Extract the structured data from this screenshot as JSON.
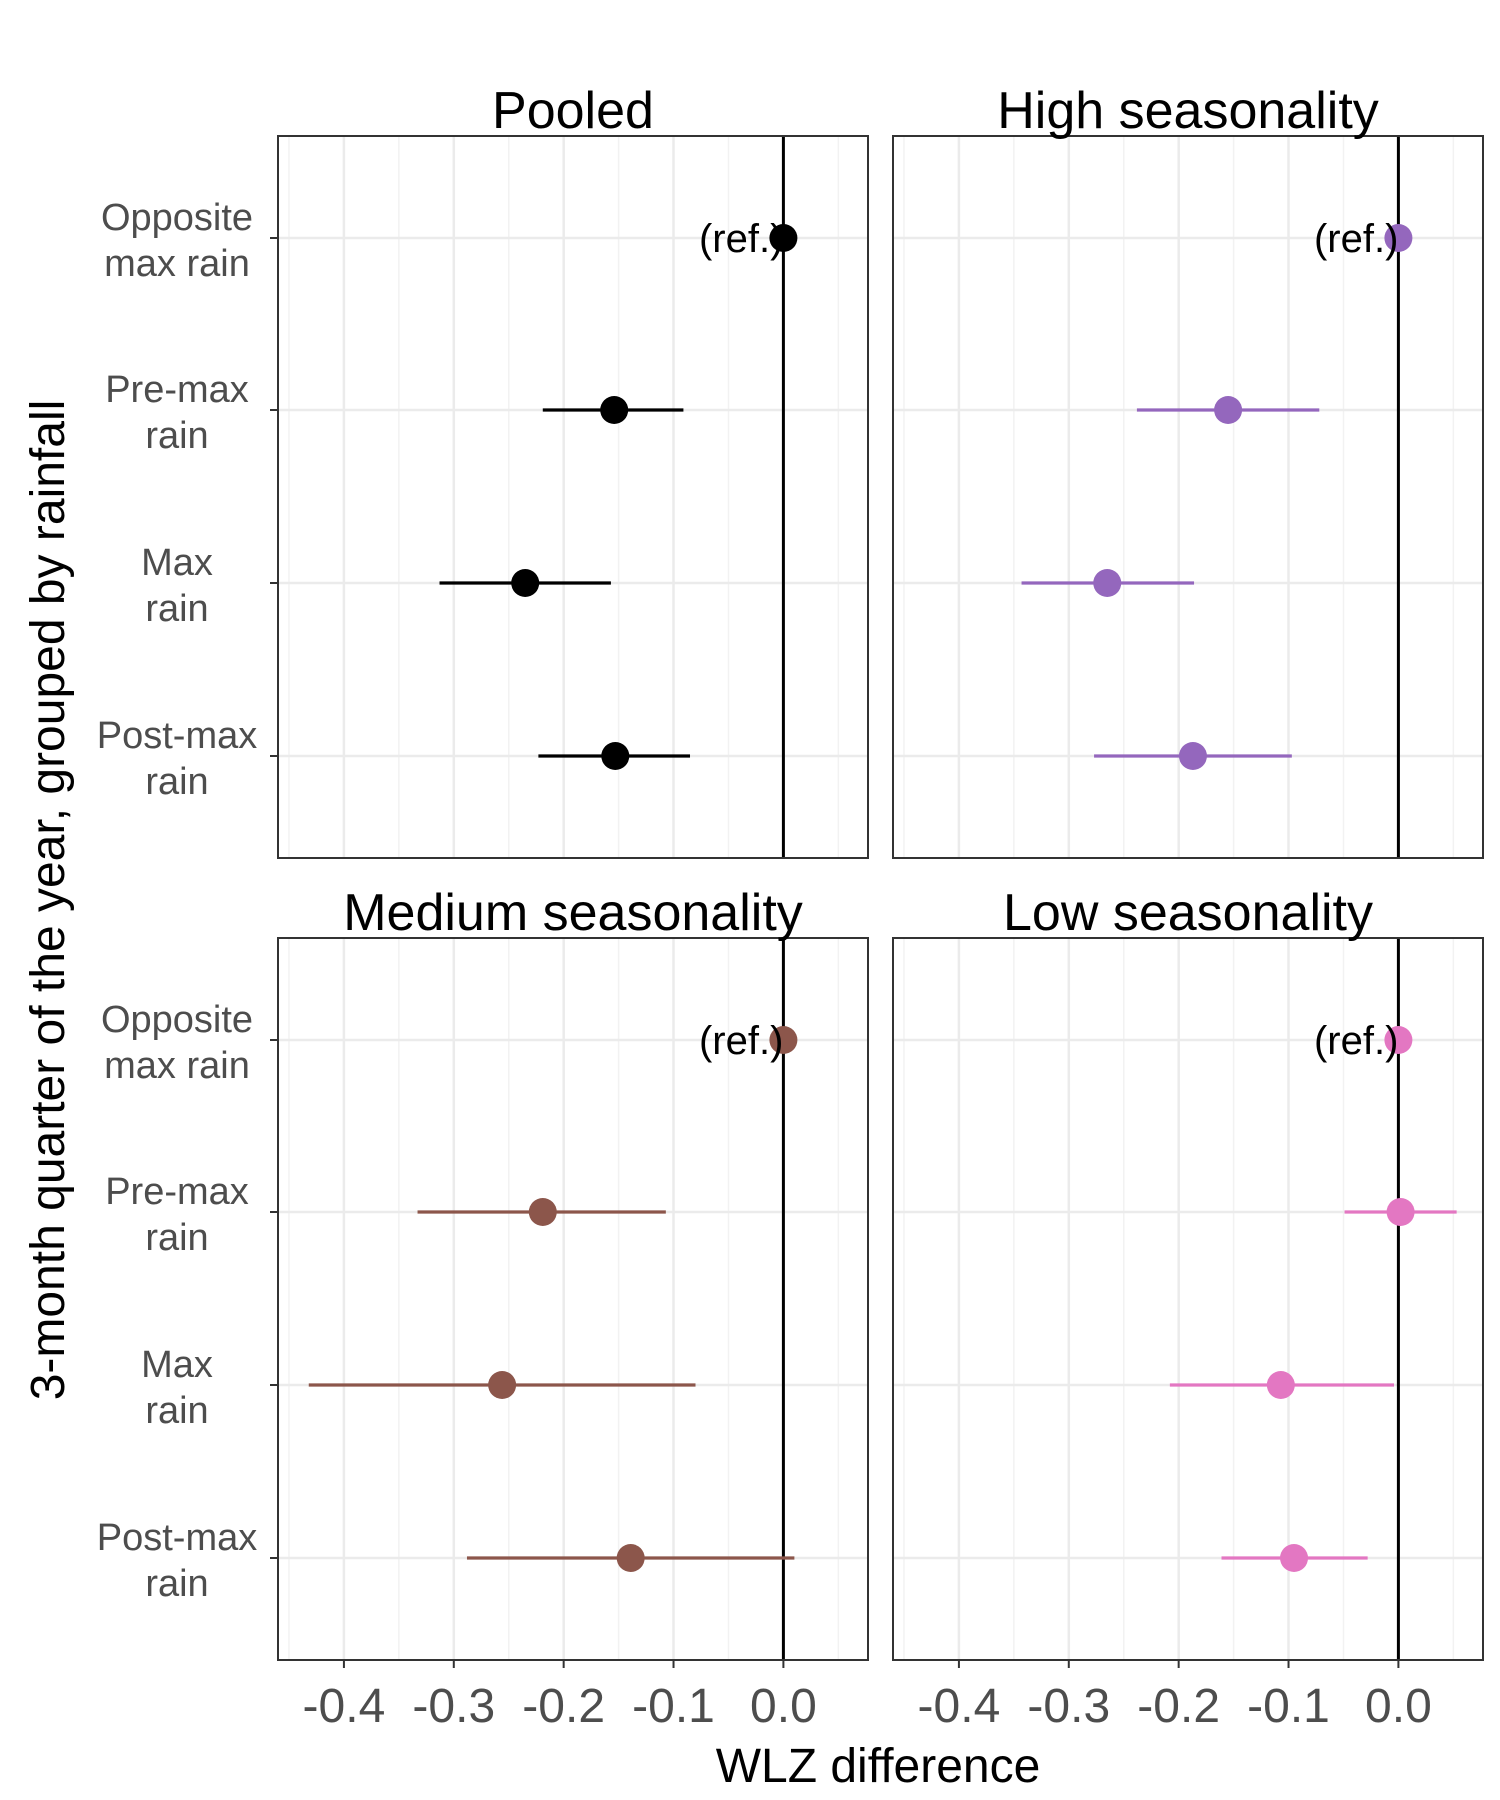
{
  "chart_data": {
    "type": "forest",
    "xlabel": "WLZ difference",
    "ylabel": "3-month quarter of the year, grouped by rainfall",
    "xlim": [
      -0.46,
      0.077
    ],
    "x_ticks": [
      "-0.4",
      "-0.3",
      "-0.2",
      "-0.1",
      "0.0"
    ],
    "categories": [
      [
        "Opposite",
        "max rain"
      ],
      [
        "Pre-max",
        "rain"
      ],
      [
        "Max",
        "rain"
      ],
      [
        "Post-max",
        "rain"
      ]
    ],
    "reference_label": "(ref.)",
    "grid": true,
    "panels": [
      {
        "title": "Pooled",
        "color": "#000000",
        "points": [
          {
            "est": 0.0,
            "lo": null,
            "hi": null
          },
          {
            "est": -0.154,
            "lo": -0.219,
            "hi": -0.091
          },
          {
            "est": -0.235,
            "lo": -0.313,
            "hi": -0.157
          },
          {
            "est": -0.153,
            "lo": -0.223,
            "hi": -0.085
          }
        ]
      },
      {
        "title": "High seasonality",
        "color": "#9467bd",
        "points": [
          {
            "est": 0.0,
            "lo": null,
            "hi": null
          },
          {
            "est": -0.155,
            "lo": -0.238,
            "hi": -0.072
          },
          {
            "est": -0.265,
            "lo": -0.343,
            "hi": -0.186
          },
          {
            "est": -0.187,
            "lo": -0.277,
            "hi": -0.097
          }
        ]
      },
      {
        "title": "Medium seasonality",
        "color": "#8c564b",
        "points": [
          {
            "est": 0.0,
            "lo": null,
            "hi": null
          },
          {
            "est": -0.219,
            "lo": -0.333,
            "hi": -0.107
          },
          {
            "est": -0.256,
            "lo": -0.432,
            "hi": -0.08
          },
          {
            "est": -0.139,
            "lo": -0.288,
            "hi": 0.01
          }
        ]
      },
      {
        "title": "Low seasonality",
        "color": "#e377c2",
        "points": [
          {
            "est": 0.0,
            "lo": null,
            "hi": null
          },
          {
            "est": 0.002,
            "lo": -0.049,
            "hi": 0.053
          },
          {
            "est": -0.107,
            "lo": -0.208,
            "hi": -0.004
          },
          {
            "est": -0.095,
            "lo": -0.161,
            "hi": -0.028
          }
        ]
      }
    ]
  }
}
